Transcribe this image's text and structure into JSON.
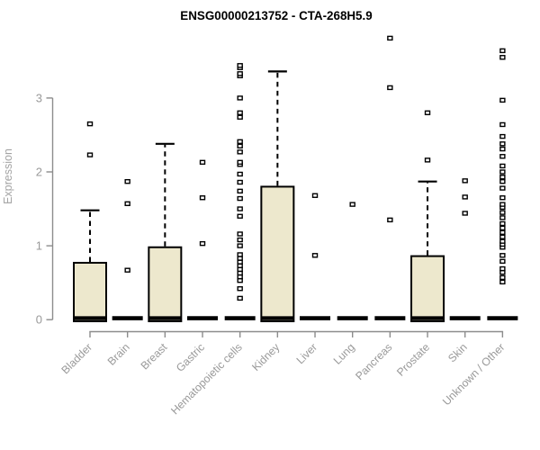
{
  "chart_data": {
    "type": "boxplot",
    "title": "ENSG00000213752 - CTA-268H5.9",
    "ylabel": "Expression",
    "xlabel": "",
    "yticks": [
      0,
      1,
      2,
      3
    ],
    "ylim": [
      0,
      3.9
    ],
    "grid": false,
    "legend": false,
    "categories": [
      "Bladder",
      "Brain",
      "Breast",
      "Gastric",
      "Hematopoietic cells",
      "Kidney",
      "Liver",
      "Lung",
      "Pancreas",
      "Prostate",
      "Skin",
      "Unknown / Other"
    ],
    "series": [
      {
        "category": "Bladder",
        "q1": 0,
        "median": 0.02,
        "q3": 0.77,
        "whisker_low": 0,
        "whisker_high": 1.48,
        "outliers": [
          2.23,
          2.65
        ]
      },
      {
        "category": "Brain",
        "q1": 0,
        "median": 0.02,
        "q3": 0.02,
        "whisker_low": 0,
        "whisker_high": 0.02,
        "outliers": [
          0.67,
          1.57,
          1.87
        ]
      },
      {
        "category": "Breast",
        "q1": 0,
        "median": 0.02,
        "q3": 0.98,
        "whisker_low": 0,
        "whisker_high": 2.38,
        "outliers": []
      },
      {
        "category": "Gastric",
        "q1": 0,
        "median": 0.02,
        "q3": 0.02,
        "whisker_low": 0,
        "whisker_high": 0.02,
        "outliers": [
          1.03,
          1.65,
          2.13
        ]
      },
      {
        "category": "Hematopoietic cells",
        "q1": 0,
        "median": 0.02,
        "q3": 0.02,
        "whisker_low": 0,
        "whisker_high": 0.02,
        "outliers": [
          0.29,
          0.42,
          0.53,
          0.58,
          0.63,
          0.68,
          0.73,
          0.78,
          0.83,
          0.88,
          1.0,
          1.08,
          1.16,
          1.4,
          1.5,
          1.64,
          1.74,
          1.86,
          1.97,
          2.1,
          2.13,
          2.27,
          2.35,
          2.41,
          2.74,
          2.8,
          3.0,
          3.3,
          3.33,
          3.41,
          3.44
        ]
      },
      {
        "category": "Kidney",
        "q1": 0,
        "median": 0.02,
        "q3": 1.8,
        "whisker_low": 0,
        "whisker_high": 3.36,
        "outliers": []
      },
      {
        "category": "Liver",
        "q1": 0,
        "median": 0.02,
        "q3": 0.02,
        "whisker_low": 0,
        "whisker_high": 0.02,
        "outliers": [
          0.87,
          1.68
        ]
      },
      {
        "category": "Lung",
        "q1": 0,
        "median": 0.02,
        "q3": 0.02,
        "whisker_low": 0,
        "whisker_high": 0.02,
        "outliers": [
          1.56
        ]
      },
      {
        "category": "Pancreas",
        "q1": 0,
        "median": 0.02,
        "q3": 0.02,
        "whisker_low": 0,
        "whisker_high": 0.02,
        "outliers": [
          1.35,
          3.14,
          3.81
        ]
      },
      {
        "category": "Prostate",
        "q1": 0,
        "median": 0.02,
        "q3": 0.86,
        "whisker_low": 0,
        "whisker_high": 1.87,
        "outliers": [
          2.16,
          2.8
        ]
      },
      {
        "category": "Skin",
        "q1": 0,
        "median": 0.02,
        "q3": 0.02,
        "whisker_low": 0,
        "whisker_high": 0.02,
        "outliers": [
          1.44,
          1.66,
          1.88
        ]
      },
      {
        "category": "Unknown / Other",
        "q1": 0,
        "median": 0.02,
        "q3": 0.02,
        "whisker_low": 0,
        "whisker_high": 0.02,
        "outliers": [
          0.51,
          0.57,
          0.64,
          0.69,
          0.79,
          0.87,
          0.98,
          1.02,
          1.06,
          1.12,
          1.18,
          1.24,
          1.3,
          1.38,
          1.45,
          1.52,
          1.56,
          1.65,
          1.78,
          1.87,
          1.93,
          2.0,
          2.08,
          2.21,
          2.31,
          2.38,
          2.48,
          2.64,
          2.97,
          3.55,
          3.64
        ]
      }
    ],
    "colors": {
      "background": "#ffffff",
      "box_fill": "#ede8cd",
      "box_stroke": "#000000",
      "median": "#000000",
      "whisker": "#000000",
      "outlier_stroke": "#000000",
      "axis": "#8c8c8c",
      "tick_label": "#999999",
      "axis_label": "#a3a3a3",
      "title": "#000000"
    }
  }
}
